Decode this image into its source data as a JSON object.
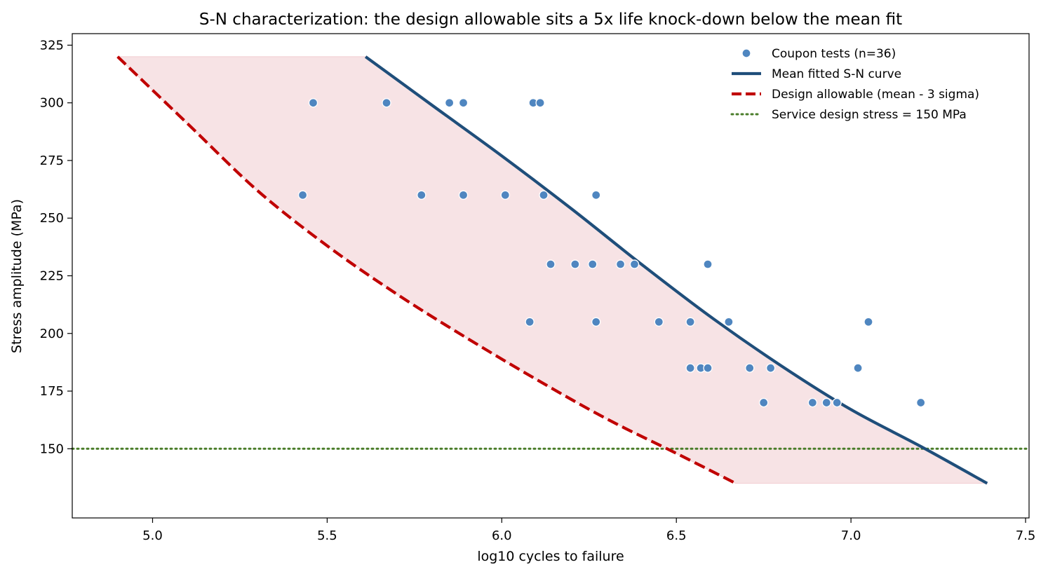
{
  "chart_data": {
    "type": "scatter",
    "title": "S-N characterization: the design allowable sits a 5x life knock-down below the mean fit",
    "xlabel": "log10  cycles to failure",
    "ylabel": "Stress amplitude  (MPa)",
    "xlim": [
      4.77,
      7.51
    ],
    "ylim": [
      120,
      330
    ],
    "xticks": [
      5.0,
      5.5,
      6.0,
      6.5,
      7.0,
      7.5
    ],
    "xtick_labels": [
      "5.0",
      "5.5",
      "6.0",
      "6.5",
      "7.0",
      "7.5"
    ],
    "yticks": [
      150,
      175,
      200,
      225,
      250,
      275,
      300,
      325
    ],
    "ytick_labels": [
      "150",
      "175",
      "200",
      "225",
      "250",
      "275",
      "300",
      "325"
    ],
    "grid": false,
    "legend_position": "top-right",
    "series": [
      {
        "name": "Coupon tests (n=36)",
        "kind": "scatter",
        "color": "#4f86c0",
        "points": [
          [
            5.46,
            300
          ],
          [
            5.67,
            300
          ],
          [
            5.85,
            300
          ],
          [
            5.89,
            300
          ],
          [
            6.09,
            300
          ],
          [
            6.11,
            300
          ],
          [
            5.43,
            260
          ],
          [
            5.77,
            260
          ],
          [
            5.89,
            260
          ],
          [
            6.01,
            260
          ],
          [
            6.12,
            260
          ],
          [
            6.27,
            260
          ],
          [
            6.14,
            230
          ],
          [
            6.21,
            230
          ],
          [
            6.26,
            230
          ],
          [
            6.34,
            230
          ],
          [
            6.38,
            230
          ],
          [
            6.59,
            230
          ],
          [
            6.08,
            205
          ],
          [
            6.27,
            205
          ],
          [
            6.45,
            205
          ],
          [
            6.54,
            205
          ],
          [
            6.65,
            205
          ],
          [
            7.05,
            205
          ],
          [
            6.54,
            185
          ],
          [
            6.57,
            185
          ],
          [
            6.59,
            185
          ],
          [
            6.71,
            185
          ],
          [
            6.77,
            185
          ],
          [
            7.02,
            185
          ],
          [
            6.75,
            170
          ],
          [
            6.89,
            170
          ],
          [
            6.93,
            170
          ],
          [
            6.96,
            170
          ],
          [
            7.2,
            170
          ],
          [
            7.2,
            170
          ]
        ]
      },
      {
        "name": "Mean fitted S-N curve",
        "kind": "line",
        "color": "#1f4e7a",
        "points": [
          [
            5.61,
            320
          ],
          [
            5.8,
            299
          ],
          [
            6.0,
            277
          ],
          [
            6.2,
            254
          ],
          [
            6.4,
            230
          ],
          [
            6.6,
            207
          ],
          [
            6.8,
            186
          ],
          [
            7.0,
            167
          ],
          [
            7.2,
            151
          ],
          [
            7.39,
            135
          ]
        ]
      },
      {
        "name": "Design allowable (mean - 3 sigma)",
        "kind": "dashed-line",
        "color": "#c00000",
        "points": [
          [
            4.9,
            320
          ],
          [
            5.1,
            291
          ],
          [
            5.3,
            262
          ],
          [
            5.5,
            238
          ],
          [
            5.7,
            217
          ],
          [
            5.9,
            198
          ],
          [
            6.1,
            180
          ],
          [
            6.3,
            163
          ],
          [
            6.5,
            148
          ],
          [
            6.67,
            135
          ]
        ]
      },
      {
        "name": "Service design stress = 150 MPa",
        "kind": "hline",
        "color": "#4a7d2a",
        "y": 150
      }
    ],
    "band": {
      "color": "#f7e3e5",
      "y_range": [
        135,
        320
      ]
    }
  }
}
